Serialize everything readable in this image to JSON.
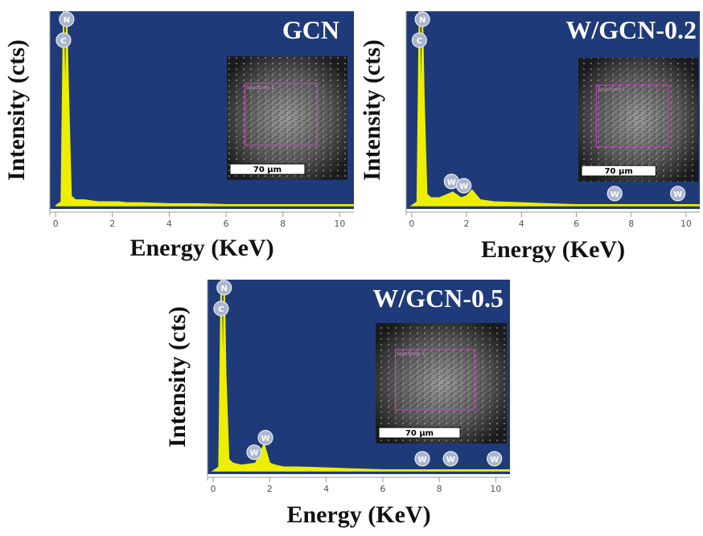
{
  "chart_data": [
    {
      "type": "area",
      "title": "GCN",
      "x_label": "Energy (KeV)",
      "y_label": "Intensity (cts)",
      "color": "#eeee00",
      "background": "#1f3a78",
      "x": [
        0,
        0.1,
        0.2,
        0.28,
        0.35,
        0.39,
        0.45,
        0.55,
        0.7,
        1,
        1.5,
        1.8,
        2,
        2.2,
        2.5,
        3,
        4,
        5,
        6,
        7,
        8,
        9,
        10,
        10.5
      ],
      "values": [
        0,
        1,
        2,
        100,
        40,
        100,
        60,
        5,
        3,
        3,
        2,
        2,
        2,
        2,
        1.5,
        1.5,
        1,
        1,
        0.5,
        0.5,
        0.5,
        0.5,
        0.5,
        0.5
      ],
      "xlim": [
        -0.2,
        10.5
      ],
      "ylim": [
        0,
        100
      ],
      "xticks": [
        0,
        2,
        4,
        6,
        8,
        10
      ],
      "peaks": [
        {
          "label": "N",
          "x": 0.39
        },
        {
          "label": "C",
          "x": 0.28
        }
      ],
      "inset": {
        "region_label": "Spectrum 1",
        "scale_bar": "70 µm"
      }
    },
    {
      "type": "area",
      "title": "W/GCN-0.2",
      "x_label": "Energy (KeV)",
      "y_label": "Intensity (cts)",
      "color": "#eeee00",
      "background": "#1f3a78",
      "x": [
        0,
        0.1,
        0.2,
        0.28,
        0.35,
        0.39,
        0.45,
        0.55,
        0.7,
        1,
        1.5,
        1.8,
        2,
        2.2,
        2.5,
        3,
        4,
        5,
        6,
        7,
        8,
        9,
        10,
        10.5
      ],
      "values": [
        0,
        1,
        2,
        100,
        40,
        100,
        55,
        6,
        4,
        4,
        7,
        4,
        5,
        8,
        3,
        2,
        1.5,
        1,
        0.5,
        0.5,
        0.5,
        0.5,
        0.5,
        0.5
      ],
      "xlim": [
        -0.2,
        10.5
      ],
      "ylim": [
        0,
        100
      ],
      "xticks": [
        0,
        2,
        4,
        6,
        8,
        10
      ],
      "peaks": [
        {
          "label": "N",
          "x": 0.39
        },
        {
          "label": "C",
          "x": 0.28
        },
        {
          "label": "W",
          "x": 1.45
        },
        {
          "label": "W",
          "x": 1.9
        },
        {
          "label": "W",
          "x": 7.4
        },
        {
          "label": "W",
          "x": 9.7
        }
      ],
      "inset": {
        "region_label": "Spectrum 1",
        "scale_bar": "70 µm"
      }
    },
    {
      "type": "area",
      "title": "W/GCN-0.5",
      "x_label": "Energy (KeV)",
      "y_label": "Intensity (cts)",
      "color": "#eeee00",
      "background": "#1f3a78",
      "x": [
        0,
        0.1,
        0.2,
        0.28,
        0.35,
        0.39,
        0.45,
        0.55,
        0.7,
        1,
        1.5,
        1.8,
        2,
        2.2,
        2.5,
        3,
        4,
        5,
        6,
        7,
        8,
        9,
        10,
        10.5
      ],
      "values": [
        0,
        1,
        2,
        100,
        40,
        100,
        50,
        6,
        4,
        3,
        4,
        14,
        4,
        3,
        2,
        2,
        1.5,
        1,
        0.5,
        0.5,
        0.5,
        0.5,
        0.5,
        0.5
      ],
      "xlim": [
        -0.2,
        10.5
      ],
      "ylim": [
        0,
        100
      ],
      "xticks": [
        0,
        2,
        4,
        6,
        8,
        10
      ],
      "peaks": [
        {
          "label": "N",
          "x": 0.39
        },
        {
          "label": "C",
          "x": 0.28
        },
        {
          "label": "W",
          "x": 1.45
        },
        {
          "label": "W",
          "x": 1.85
        },
        {
          "label": "W",
          "x": 7.4
        },
        {
          "label": "W",
          "x": 8.4
        },
        {
          "label": "W",
          "x": 9.95
        }
      ],
      "inset": {
        "region_label": "Spectrum 1",
        "scale_bar": "70 µm"
      }
    }
  ]
}
